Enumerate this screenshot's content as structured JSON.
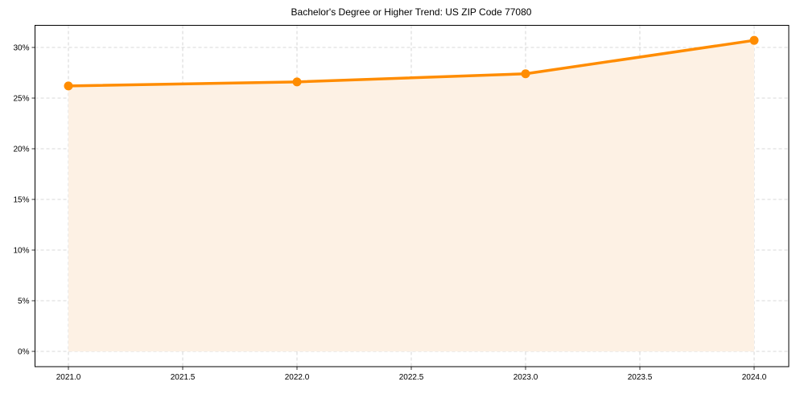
{
  "chart_data": {
    "type": "line",
    "title": "Bachelor's Degree or Higher Trend: US ZIP Code 77080",
    "xlabel": "",
    "ylabel": "",
    "x": [
      2021,
      2022,
      2023,
      2024
    ],
    "series": [
      {
        "name": "Bachelor's Degree or Higher",
        "values": [
          26.2,
          26.6,
          27.4,
          30.7
        ],
        "color": "#ff8c00",
        "fill_color": "#fdf1e4",
        "markers": true,
        "area_fill": true
      }
    ],
    "xlim": [
      2020.85,
      2024.15
    ],
    "ylim": [
      -1.5,
      32.2
    ],
    "xticks": [
      2021.0,
      2021.5,
      2022.0,
      2022.5,
      2023.0,
      2023.5,
      2024.0
    ],
    "xtick_labels": [
      "2021.0",
      "2021.5",
      "2022.0",
      "2022.5",
      "2023.0",
      "2023.5",
      "2024.0"
    ],
    "yticks": [
      0,
      5,
      10,
      15,
      20,
      25,
      30
    ],
    "ytick_labels": [
      "0%",
      "5%",
      "10%",
      "15%",
      "20%",
      "25%",
      "30%"
    ],
    "grid": true,
    "legend": null
  }
}
